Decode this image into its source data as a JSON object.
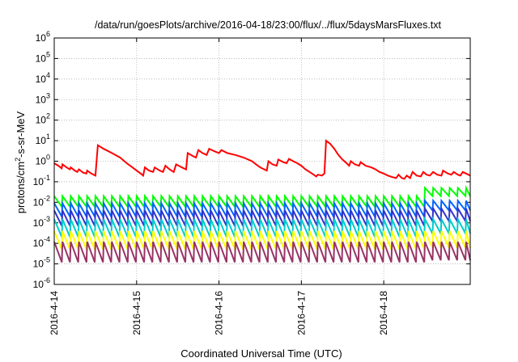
{
  "chart_data": {
    "type": "line",
    "title": "/data/run/goesPlots/archive/2016-04-18/23:00/flux/../flux/5daysMarsFluxes.txt",
    "xlabel": "Coordinated Universal Time (UTC)",
    "ylabel": {
      "prefix": "protons/cm",
      "sup": "2",
      "suffix": "-s-sr-MeV"
    },
    "xlim": [
      0,
      5.05
    ],
    "xticks": [
      {
        "x": 0,
        "label": "2016-4-14"
      },
      {
        "x": 1,
        "label": "2016-4-15"
      },
      {
        "x": 2,
        "label": "2016-4-16"
      },
      {
        "x": 3,
        "label": "2016-4-17"
      },
      {
        "x": 4,
        "label": "2016-4-18"
      }
    ],
    "y_scale": "log",
    "ylim_exp": [
      -6,
      6
    ],
    "ytick_base": "10",
    "ytick_exponents": [
      -6,
      -5,
      -4,
      -3,
      -2,
      -1,
      0,
      1,
      2,
      3,
      4,
      5,
      6
    ],
    "grid": true,
    "legend": false,
    "series": [
      {
        "color": "#ff0000",
        "points": [
          [
            0.0,
            0.8
          ],
          [
            0.05,
            0.6
          ],
          [
            0.09,
            0.45
          ],
          [
            0.1,
            0.7
          ],
          [
            0.15,
            0.5
          ],
          [
            0.19,
            0.4
          ],
          [
            0.2,
            0.5
          ],
          [
            0.25,
            0.35
          ],
          [
            0.28,
            0.3
          ],
          [
            0.3,
            0.4
          ],
          [
            0.35,
            0.28
          ],
          [
            0.39,
            0.25
          ],
          [
            0.4,
            0.35
          ],
          [
            0.45,
            0.25
          ],
          [
            0.5,
            0.2
          ],
          [
            0.53,
            6
          ],
          [
            0.6,
            4
          ],
          [
            0.7,
            2.5
          ],
          [
            0.8,
            1.5
          ],
          [
            0.88,
            0.8
          ],
          [
            0.95,
            0.5
          ],
          [
            1.0,
            0.35
          ],
          [
            1.05,
            0.25
          ],
          [
            1.08,
            0.2
          ],
          [
            1.1,
            0.5
          ],
          [
            1.15,
            0.35
          ],
          [
            1.2,
            0.3
          ],
          [
            1.22,
            0.5
          ],
          [
            1.28,
            0.35
          ],
          [
            1.32,
            0.3
          ],
          [
            1.35,
            0.6
          ],
          [
            1.4,
            0.4
          ],
          [
            1.45,
            0.3
          ],
          [
            1.48,
            0.7
          ],
          [
            1.55,
            0.5
          ],
          [
            1.6,
            0.4
          ],
          [
            1.62,
            2.5
          ],
          [
            1.68,
            1.8
          ],
          [
            1.72,
            1.5
          ],
          [
            1.75,
            3.5
          ],
          [
            1.8,
            2.5
          ],
          [
            1.85,
            2.0
          ],
          [
            1.88,
            4
          ],
          [
            1.95,
            3
          ],
          [
            2.0,
            2.5
          ],
          [
            2.03,
            3.5
          ],
          [
            2.1,
            2.5
          ],
          [
            2.2,
            2.0
          ],
          [
            2.3,
            1.5
          ],
          [
            2.4,
            1.0
          ],
          [
            2.45,
            0.7
          ],
          [
            2.5,
            0.5
          ],
          [
            2.55,
            0.4
          ],
          [
            2.58,
            0.35
          ],
          [
            2.6,
            1.0
          ],
          [
            2.65,
            0.7
          ],
          [
            2.7,
            0.6
          ],
          [
            2.72,
            1.2
          ],
          [
            2.78,
            0.9
          ],
          [
            2.82,
            0.8
          ],
          [
            2.85,
            1.3
          ],
          [
            2.9,
            1.0
          ],
          [
            2.95,
            0.8
          ],
          [
            3.0,
            0.6
          ],
          [
            3.05,
            0.4
          ],
          [
            3.1,
            0.3
          ],
          [
            3.15,
            0.22
          ],
          [
            3.18,
            0.18
          ],
          [
            3.2,
            0.22
          ],
          [
            3.25,
            0.2
          ],
          [
            3.28,
            0.25
          ],
          [
            3.3,
            10
          ],
          [
            3.35,
            7
          ],
          [
            3.4,
            4
          ],
          [
            3.45,
            2.0
          ],
          [
            3.5,
            1.2
          ],
          [
            3.55,
            0.8
          ],
          [
            3.58,
            0.6
          ],
          [
            3.6,
            1.0
          ],
          [
            3.65,
            0.7
          ],
          [
            3.7,
            0.6
          ],
          [
            3.72,
            0.9
          ],
          [
            3.78,
            0.6
          ],
          [
            3.85,
            0.5
          ],
          [
            3.9,
            0.4
          ],
          [
            3.95,
            0.3
          ],
          [
            4.0,
            0.25
          ],
          [
            4.05,
            0.2
          ],
          [
            4.1,
            0.17
          ],
          [
            4.15,
            0.15
          ],
          [
            4.18,
            0.22
          ],
          [
            4.22,
            0.15
          ],
          [
            4.25,
            0.14
          ],
          [
            4.28,
            0.2
          ],
          [
            4.32,
            0.15
          ],
          [
            4.35,
            0.3
          ],
          [
            4.4,
            0.2
          ],
          [
            4.45,
            0.18
          ],
          [
            4.48,
            0.3
          ],
          [
            4.52,
            0.22
          ],
          [
            4.56,
            0.2
          ],
          [
            4.6,
            0.3
          ],
          [
            4.65,
            0.22
          ],
          [
            4.7,
            0.2
          ],
          [
            4.72,
            0.35
          ],
          [
            4.78,
            0.25
          ],
          [
            4.82,
            0.22
          ],
          [
            4.85,
            0.3
          ],
          [
            4.9,
            0.22
          ],
          [
            4.93,
            0.2
          ],
          [
            4.96,
            0.3
          ],
          [
            5.0,
            0.25
          ],
          [
            5.05,
            0.2
          ]
        ]
      },
      {
        "color": "#00ff00",
        "peak": 0.02,
        "trough": 0.006,
        "period": 0.1,
        "late_peak": 0.05,
        "late_trough": 0.02
      },
      {
        "color": "#0066ff",
        "peak": 0.009,
        "trough": 0.002,
        "period": 0.1,
        "late_peak": 0.012,
        "late_trough": 0.004
      },
      {
        "color": "#3333cc",
        "peak": 0.004,
        "trough": 0.0007,
        "period": 0.1,
        "late_peak": 0.005,
        "late_trough": 0.0012
      },
      {
        "color": "#00cccc",
        "peak": 0.0015,
        "trough": 0.0002,
        "period": 0.1,
        "late_peak": 0.0015,
        "late_trough": 0.0003
      },
      {
        "color": "#ffff00",
        "peak": 0.0004,
        "trough": 5e-05,
        "period": 0.1,
        "late_peak": 0.0004,
        "late_trough": 6e-05
      },
      {
        "color": "#993366",
        "peak": 0.00012,
        "trough": 1.2e-05,
        "period": 0.1,
        "late_peak": 0.00012,
        "late_trough": 1.5e-05
      }
    ]
  }
}
